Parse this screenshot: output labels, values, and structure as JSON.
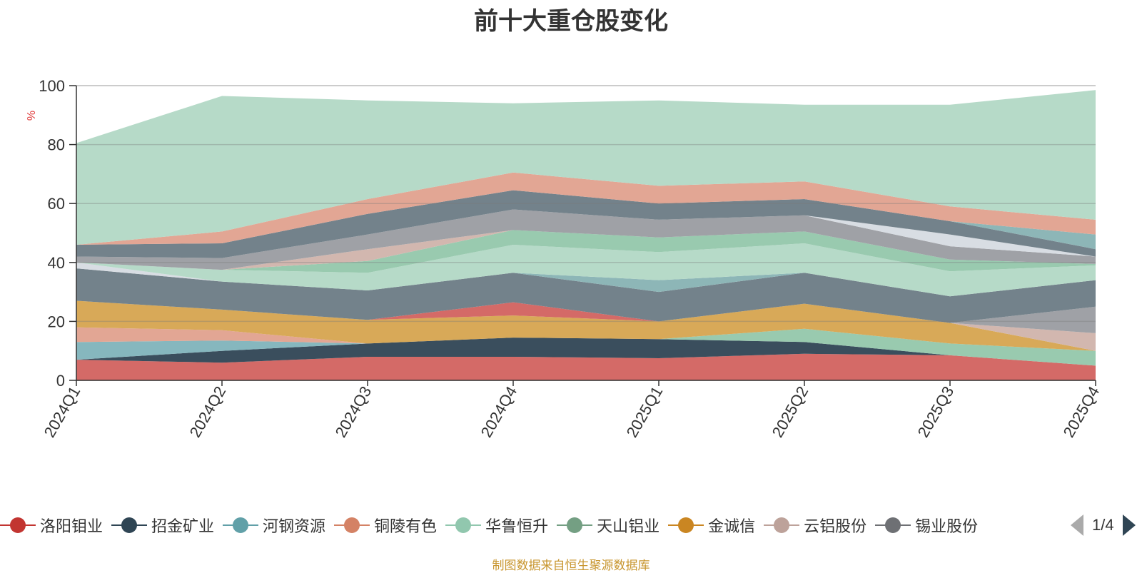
{
  "title": "前十大重仓股变化",
  "source_note": "制图数据来自恒生聚源数据库",
  "legend_page": "1/4",
  "chart_data": {
    "type": "area",
    "stacked": true,
    "title": "前十大重仓股变化",
    "ylabel": "%",
    "ylim": [
      0,
      100
    ],
    "yticks": [
      0,
      20,
      40,
      60,
      80,
      100
    ],
    "grid": true,
    "legend_position": "bottom",
    "categories": [
      "2024Q1",
      "2024Q2",
      "2024Q3",
      "2024Q4",
      "2025Q1",
      "2025Q2",
      "2025Q3",
      "2025Q4"
    ],
    "legend_visible": [
      "洛阳钼业",
      "招金矿业",
      "河钢资源",
      "铜陵有色",
      "华鲁恒升",
      "天山铝业",
      "金诚信",
      "云铝股份",
      "锡业股份"
    ],
    "layers": [
      {
        "color": "#d2625f",
        "values": [
          7,
          6,
          8,
          8,
          7.5,
          9,
          8.5,
          5
        ]
      },
      {
        "color": "#2f4554",
        "values": [
          0,
          4,
          4.5,
          6.5,
          6.5,
          4,
          0,
          0
        ]
      },
      {
        "color": "#7fb3bb",
        "values": [
          6,
          3.5,
          0,
          0,
          0,
          0,
          0,
          0
        ]
      },
      {
        "color": "#e0a18e",
        "values": [
          5,
          3.5,
          0,
          0,
          0,
          0,
          0,
          0
        ]
      },
      {
        "color": "#94c7ab",
        "values": [
          0,
          0,
          0,
          0,
          0,
          4.5,
          4,
          5
        ]
      },
      {
        "color": "#d6a44f",
        "values": [
          9,
          7,
          8,
          7.5,
          6,
          8.5,
          7,
          0
        ]
      },
      {
        "color": "#d2625f",
        "values": [
          0,
          0,
          0,
          4.5,
          0,
          0,
          0,
          0
        ]
      },
      {
        "color": "#d0b3ab",
        "values": [
          0,
          0,
          0,
          0,
          0,
          0,
          0,
          6
        ]
      },
      {
        "color": "#9a9ca1",
        "values": [
          0,
          0,
          0,
          0,
          0,
          0,
          0,
          9
        ]
      },
      {
        "color": "#6c7b85",
        "values": [
          11,
          9.5,
          10,
          10,
          10,
          10.5,
          9,
          9
        ]
      },
      {
        "color": "#d6dbe2",
        "values": [
          2,
          0,
          0,
          0,
          0,
          0,
          0,
          0
        ]
      },
      {
        "color": "#87b2b3",
        "values": [
          0,
          0,
          0,
          0,
          4,
          0,
          0,
          0
        ]
      },
      {
        "color": "#b2d8c5",
        "values": [
          0,
          4,
          6,
          9.5,
          9.5,
          10,
          8.5,
          5
        ]
      },
      {
        "color": "#94c7ab",
        "values": [
          0,
          0,
          4,
          5,
          5,
          4,
          4,
          0.5
        ]
      },
      {
        "color": "#e0a18e",
        "values": [
          0,
          0,
          0,
          0,
          0,
          0,
          0,
          0
        ]
      },
      {
        "color": "#d0b3ab",
        "values": [
          0,
          0,
          4,
          0,
          0,
          0,
          0,
          0
        ]
      },
      {
        "color": "#9a9ca1",
        "values": [
          2,
          4,
          5,
          7,
          6,
          5.5,
          4.5,
          2.5
        ]
      },
      {
        "color": "#d6dbe2",
        "values": [
          0,
          0,
          0,
          0,
          0,
          0,
          4,
          0
        ]
      },
      {
        "color": "#6c7b85",
        "values": [
          4,
          5,
          7,
          6.5,
          5.5,
          5.5,
          4.5,
          2.5
        ]
      },
      {
        "color": "#87b2b3",
        "values": [
          0,
          0,
          0,
          0,
          0,
          0,
          0,
          5
        ]
      },
      {
        "color": "#e0a18e",
        "values": [
          0,
          4,
          5,
          6,
          6,
          6,
          5,
          5
        ]
      },
      {
        "color": "#b2d8c5",
        "values": [
          34.5,
          46,
          33.5,
          23.5,
          29,
          26,
          34.5,
          44
        ]
      }
    ]
  },
  "legend": [
    {
      "label": "洛阳钼业",
      "color": "#c23531",
      "icon": "circle"
    },
    {
      "label": "招金矿业",
      "color": "#2f4554",
      "icon": "circle"
    },
    {
      "label": "河钢资源",
      "color": "#61a0a8",
      "icon": "circle"
    },
    {
      "label": "铜陵有色",
      "color": "#d48265",
      "icon": "circle"
    },
    {
      "label": "华鲁恒升",
      "color": "#91c7ae",
      "icon": "circle"
    },
    {
      "label": "天山铝业",
      "color": "#749f83",
      "icon": "circle"
    },
    {
      "label": "金诚信",
      "color": "#ca8622",
      "icon": "circle"
    },
    {
      "label": "云铝股份",
      "color": "#bda29a",
      "icon": "circle"
    },
    {
      "label": "锡业股份",
      "color": "#6e7074",
      "icon": "circle"
    }
  ]
}
